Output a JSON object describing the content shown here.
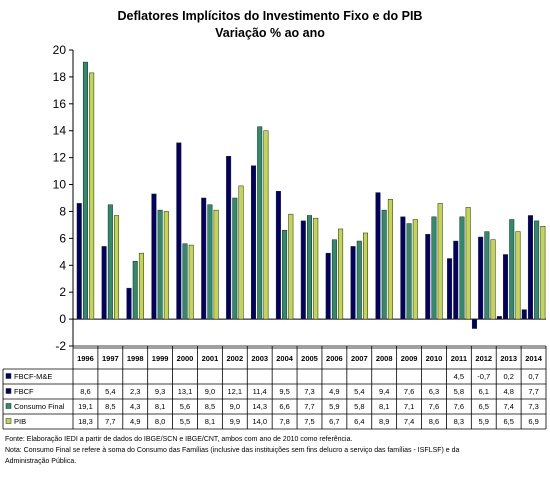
{
  "chart_data": {
    "type": "bar",
    "title": "Deflatores Implícitos do Investimento Fixo e do PIB",
    "subtitle": "Variação % ao ano",
    "xlabel": "",
    "ylabel": "",
    "ylim": [
      -2,
      20
    ],
    "yticks": [
      -2,
      0,
      2,
      4,
      6,
      8,
      10,
      12,
      14,
      16,
      18,
      20
    ],
    "grid": false,
    "legend": "table-below",
    "categories": [
      "1996",
      "1997",
      "1998",
      "1999",
      "2000",
      "2001",
      "2002",
      "2003",
      "2004",
      "2005",
      "2006",
      "2007",
      "2008",
      "2009",
      "2010",
      "2011",
      "2012",
      "2013",
      "2014"
    ],
    "series": [
      {
        "name": "FBCF-M&E",
        "color": "#000066",
        "values": [
          8.6,
          5.4,
          2.3,
          9.3,
          13.1,
          9.0,
          12.1,
          11.4,
          9.5,
          7.3,
          4.9,
          5.4,
          9.4,
          7.6,
          6.3,
          4.5,
          -0.7,
          0.2,
          0.7
        ],
        "labels": [
          "",
          "",
          "",
          "",
          "",
          "",
          "",
          "",
          "",
          "",
          "",
          "",
          "",
          "",
          "",
          "4,5",
          "-0,7",
          "0,2",
          "0,7"
        ]
      },
      {
        "name": "FBCF",
        "color": "#000066",
        "values": [
          8.6,
          5.4,
          2.3,
          9.3,
          13.1,
          9.0,
          12.1,
          11.4,
          9.5,
          7.3,
          4.9,
          5.4,
          9.4,
          7.6,
          6.3,
          5.8,
          6.1,
          4.8,
          7.7
        ],
        "labels": [
          "8,6",
          "5,4",
          "2,3",
          "9,3",
          "13,1",
          "9,0",
          "12,1",
          "11,4",
          "9,5",
          "7,3",
          "4,9",
          "5,4",
          "9,4",
          "7,6",
          "6,3",
          "5,8",
          "6,1",
          "4,8",
          "7,7"
        ]
      },
      {
        "name": "Consumo Final",
        "color": "#2d8c6e",
        "values": [
          19.1,
          8.5,
          4.3,
          8.1,
          5.6,
          8.5,
          9.0,
          14.3,
          6.6,
          7.7,
          5.9,
          5.8,
          8.1,
          7.1,
          7.6,
          7.6,
          6.5,
          7.4,
          7.3
        ],
        "labels": [
          "19,1",
          "8,5",
          "4,3",
          "8,1",
          "5,6",
          "8,5",
          "9,0",
          "14,3",
          "6,6",
          "7,7",
          "5,9",
          "5,8",
          "8,1",
          "7,1",
          "7,6",
          "7,6",
          "6,5",
          "7,4",
          "7,3"
        ]
      },
      {
        "name": "PIB",
        "color": "#c2d64e",
        "values": [
          18.3,
          7.7,
          4.9,
          8.0,
          5.5,
          8.1,
          9.9,
          14.0,
          7.8,
          7.5,
          6.7,
          6.4,
          8.9,
          7.4,
          8.6,
          8.3,
          5.9,
          6.5,
          6.9
        ],
        "labels": [
          "18,3",
          "7,7",
          "4,9",
          "8,0",
          "5,5",
          "8,1",
          "9,9",
          "14,0",
          "7,8",
          "7,5",
          "6,7",
          "6,4",
          "8,9",
          "7,4",
          "8,6",
          "8,3",
          "5,9",
          "6,5",
          "6,9"
        ]
      }
    ]
  },
  "notes": {
    "source": "Fonte: Elaboração IEDI a partir de dados do IBGE/SCN e IBGE/CNT, ambos com ano de 2010 como referência.",
    "note_line1": "Nota: Consumo Final se refere à soma do Consumo das Famílias (inclusive das instituições sem fins delucro a serviço das famílias - ISFLSF) e da",
    "note_line2": "Administração Pública."
  }
}
